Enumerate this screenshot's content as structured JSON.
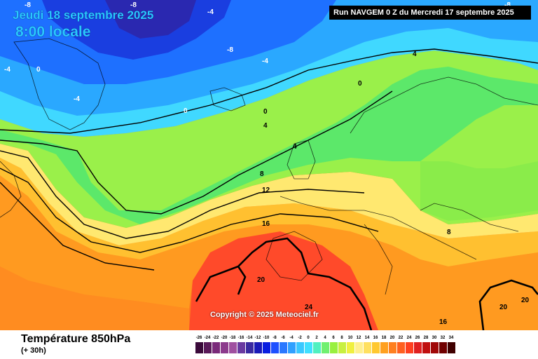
{
  "header": {
    "date": "Jeudi 18 septembre 2025",
    "time": "8:00 locale",
    "run": "Run NAVGEM 0 Z du Mercredi 17 septembre 2025"
  },
  "map": {
    "copyright": "Copyright © 2025 Meteociel.fr",
    "isotherm_labels": [
      "-8",
      "-8",
      "-8",
      "-4",
      "-4",
      "0",
      "-4",
      "-8",
      "0",
      "-4",
      "0",
      "4",
      "0",
      "4",
      "8",
      "12",
      "16",
      "20",
      "24",
      "20",
      "20",
      "16",
      "8",
      "4"
    ]
  },
  "legend": {
    "title": "Température 850hPa",
    "subtitle": "(+ 30h)",
    "ticks": [
      "-26",
      "-24",
      "-22",
      "-20",
      "-18",
      "-16",
      "-14",
      "-12",
      "-10",
      "-8",
      "-6",
      "-4",
      "-2",
      "0",
      "2",
      "4",
      "6",
      "8",
      "10",
      "12",
      "14",
      "16",
      "18",
      "20",
      "22",
      "24",
      "26",
      "28",
      "30",
      "32",
      "34"
    ],
    "colors": [
      "#3a0a3a",
      "#5a1a5a",
      "#7a2a7a",
      "#8c3a8c",
      "#a050a0",
      "#6a3aa0",
      "#3a2aa0",
      "#1a1ab8",
      "#0a1ee0",
      "#1e50ff",
      "#2a78ff",
      "#30a0ff",
      "#3ac8ff",
      "#40e0ff",
      "#50f0c0",
      "#70f070",
      "#98f040",
      "#c8f040",
      "#f0f040",
      "#fff090",
      "#ffe060",
      "#ffc830",
      "#ffa020",
      "#ff8020",
      "#ff6020",
      "#ff4020",
      "#e02020",
      "#c01010",
      "#a00808",
      "#700000",
      "#400000"
    ]
  }
}
